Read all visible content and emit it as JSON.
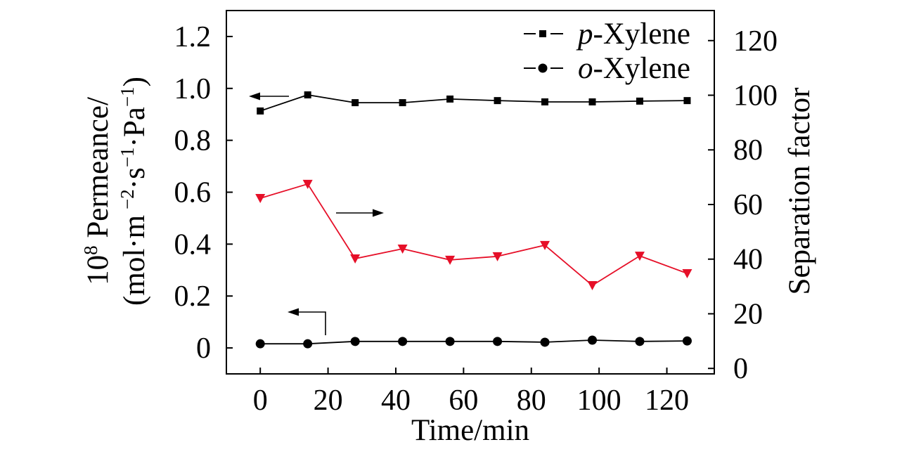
{
  "chart_data": {
    "type": "line",
    "legend": "top-right",
    "grid": false,
    "x": [
      0,
      14,
      28,
      42,
      56,
      70,
      84,
      98,
      112,
      126
    ],
    "xlabel": "Time/min",
    "xlim": [
      -10,
      134
    ],
    "xticks": [
      0,
      20,
      40,
      60,
      80,
      100,
      120
    ],
    "xtick_labels": [
      "0",
      "20",
      "40",
      "60",
      "80",
      "100",
      "120"
    ],
    "y_left": {
      "label_line1": {
        "base": "10",
        "sup": "8",
        "rest": " Permeance/"
      },
      "label_line2": {
        "open": "(mol·m",
        "sup1": "−2",
        "mid1": "·s",
        "sup2": "−1",
        "mid2": "·Pa",
        "sup3": "−1",
        "close": ")"
      },
      "lim": [
        -0.1,
        1.3
      ],
      "ticks": [
        0,
        0.2,
        0.4,
        0.6,
        0.8,
        1.0,
        1.2
      ],
      "tick_labels": [
        "0",
        "0.2",
        "0.4",
        "0.6",
        "0.8",
        "1.0",
        "1.2"
      ],
      "series": [
        {
          "label_italic": "p",
          "label_rest": "-Xylene",
          "marker": "square",
          "color": "#000000",
          "values": [
            0.913,
            0.975,
            0.945,
            0.945,
            0.959,
            0.953,
            0.948,
            0.948,
            0.951,
            0.953
          ]
        },
        {
          "label_italic": "o",
          "label_rest": "-Xylene",
          "marker": "circle",
          "color": "#000000",
          "values": [
            0.016,
            0.016,
            0.025,
            0.025,
            0.025,
            0.025,
            0.022,
            0.03,
            0.025,
            0.027
          ]
        }
      ]
    },
    "y_right": {
      "label": "Separation factor",
      "lim": [
        -2,
        131
      ],
      "ticks": [
        0,
        20,
        40,
        60,
        80,
        100,
        120
      ],
      "tick_labels": [
        "0",
        "20",
        "40",
        "60",
        "80",
        "100",
        "120"
      ],
      "series": [
        {
          "marker": "triangle-down",
          "color": "#e60f28",
          "values": [
            62.3,
            67.5,
            40.2,
            43.8,
            39.7,
            41.0,
            45.1,
            30.4,
            41.2,
            34.8
          ]
        }
      ]
    }
  }
}
